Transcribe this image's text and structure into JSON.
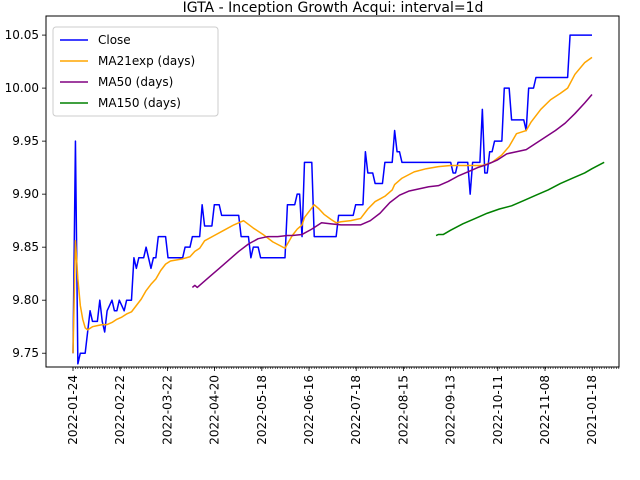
{
  "chart_data": {
    "type": "line",
    "title": "IGTA - Inception Growth Acqui: interval=1d",
    "xlabel": "",
    "ylabel": "",
    "ylim": [
      9.737,
      10.068
    ],
    "grid": false,
    "legend_position": "top-left",
    "x_tick_labels": [
      "2022-01-24",
      "2022-02-22",
      "2022-03-22",
      "2022-04-20",
      "2022-05-18",
      "2022-06-16",
      "2022-07-18",
      "2022-08-15",
      "2022-09-13",
      "2022-10-11",
      "2022-11-08",
      "2021-01-18"
    ],
    "y_tick_labels": [
      "9.75",
      "9.80",
      "9.85",
      "9.90",
      "9.95",
      "10.00",
      "10.05"
    ],
    "y_ticks": [
      9.75,
      9.8,
      9.85,
      9.9,
      9.95,
      10.0,
      10.05
    ],
    "n_points": 250,
    "series": [
      {
        "name": "Close",
        "color": "#0000ff",
        "points": [
          [
            0,
            9.75
          ],
          [
            1,
            9.95
          ],
          [
            2,
            9.74
          ],
          [
            3,
            9.75
          ],
          [
            5,
            9.75
          ],
          [
            6,
            9.77
          ],
          [
            7,
            9.79
          ],
          [
            8,
            9.78
          ],
          [
            10,
            9.78
          ],
          [
            11,
            9.8
          ],
          [
            12,
            9.78
          ],
          [
            13,
            9.77
          ],
          [
            14,
            9.79
          ],
          [
            16,
            9.8
          ],
          [
            17,
            9.79
          ],
          [
            18,
            9.79
          ],
          [
            19,
            9.8
          ],
          [
            21,
            9.79
          ],
          [
            22,
            9.8
          ],
          [
            24,
            9.8
          ],
          [
            25,
            9.84
          ],
          [
            26,
            9.83
          ],
          [
            27,
            9.84
          ],
          [
            29,
            9.84
          ],
          [
            30,
            9.85
          ],
          [
            31,
            9.84
          ],
          [
            32,
            9.83
          ],
          [
            33,
            9.84
          ],
          [
            34,
            9.84
          ],
          [
            35,
            9.86
          ],
          [
            37,
            9.86
          ],
          [
            38,
            9.86
          ],
          [
            39,
            9.84
          ],
          [
            40,
            9.84
          ],
          [
            45,
            9.84
          ],
          [
            46,
            9.85
          ],
          [
            48,
            9.85
          ],
          [
            49,
            9.86
          ],
          [
            51,
            9.86
          ],
          [
            52,
            9.86
          ],
          [
            53,
            9.89
          ],
          [
            54,
            9.87
          ],
          [
            57,
            9.87
          ],
          [
            58,
            9.89
          ],
          [
            60,
            9.89
          ],
          [
            61,
            9.88
          ],
          [
            64,
            9.88
          ],
          [
            68,
            9.88
          ],
          [
            69,
            9.86
          ],
          [
            72,
            9.86
          ],
          [
            73,
            9.84
          ],
          [
            74,
            9.85
          ],
          [
            76,
            9.85
          ],
          [
            77,
            9.84
          ],
          [
            82,
            9.84
          ],
          [
            87,
            9.84
          ],
          [
            88,
            9.89
          ],
          [
            90,
            9.89
          ],
          [
            91,
            9.89
          ],
          [
            92,
            9.9
          ],
          [
            93,
            9.9
          ],
          [
            94,
            9.86
          ],
          [
            95,
            9.93
          ],
          [
            98,
            9.93
          ],
          [
            99,
            9.86
          ],
          [
            101,
            9.86
          ],
          [
            108,
            9.86
          ],
          [
            109,
            9.88
          ],
          [
            115,
            9.88
          ],
          [
            116,
            9.89
          ],
          [
            119,
            9.89
          ],
          [
            120,
            9.94
          ],
          [
            121,
            9.92
          ],
          [
            123,
            9.92
          ],
          [
            124,
            9.91
          ],
          [
            127,
            9.91
          ],
          [
            128,
            9.93
          ],
          [
            130,
            9.93
          ],
          [
            131,
            9.93
          ],
          [
            132,
            9.96
          ],
          [
            133,
            9.94
          ],
          [
            134,
            9.94
          ],
          [
            135,
            9.93
          ],
          [
            150,
            9.93
          ],
          [
            155,
            9.93
          ],
          [
            156,
            9.92
          ],
          [
            157,
            9.92
          ],
          [
            158,
            9.93
          ],
          [
            162,
            9.93
          ],
          [
            163,
            9.9
          ],
          [
            164,
            9.93
          ],
          [
            166,
            9.93
          ],
          [
            167,
            9.93
          ],
          [
            168,
            9.98
          ],
          [
            169,
            9.92
          ],
          [
            170,
            9.92
          ],
          [
            171,
            9.94
          ],
          [
            172,
            9.94
          ],
          [
            173,
            9.95
          ],
          [
            176,
            9.95
          ],
          [
            177,
            10.0
          ],
          [
            179,
            10.0
          ],
          [
            180,
            9.97
          ],
          [
            185,
            9.97
          ],
          [
            186,
            9.96
          ],
          [
            187,
            10.0
          ],
          [
            189,
            10.0
          ],
          [
            190,
            10.01
          ],
          [
            203,
            10.01
          ],
          [
            204,
            10.05
          ],
          [
            213,
            10.05
          ]
        ]
      },
      {
        "name": "MA21exp (days)",
        "color": "#ffa500",
        "points": [
          [
            0,
            9.75
          ],
          [
            1,
            9.856
          ],
          [
            2,
            9.82
          ],
          [
            3,
            9.795
          ],
          [
            4,
            9.782
          ],
          [
            5,
            9.774
          ],
          [
            6,
            9.772
          ],
          [
            8,
            9.775
          ],
          [
            10,
            9.776
          ],
          [
            12,
            9.777
          ],
          [
            14,
            9.777
          ],
          [
            16,
            9.779
          ],
          [
            18,
            9.782
          ],
          [
            20,
            9.784
          ],
          [
            22,
            9.787
          ],
          [
            24,
            9.789
          ],
          [
            26,
            9.795
          ],
          [
            28,
            9.801
          ],
          [
            30,
            9.809
          ],
          [
            32,
            9.815
          ],
          [
            34,
            9.82
          ],
          [
            36,
            9.828
          ],
          [
            38,
            9.834
          ],
          [
            40,
            9.837
          ],
          [
            45,
            9.839
          ],
          [
            48,
            9.841
          ],
          [
            50,
            9.846
          ],
          [
            52,
            9.849
          ],
          [
            54,
            9.856
          ],
          [
            58,
            9.861
          ],
          [
            62,
            9.866
          ],
          [
            66,
            9.871
          ],
          [
            70,
            9.875
          ],
          [
            74,
            9.868
          ],
          [
            78,
            9.862
          ],
          [
            82,
            9.855
          ],
          [
            87,
            9.849
          ],
          [
            88,
            9.853
          ],
          [
            90,
            9.861
          ],
          [
            92,
            9.867
          ],
          [
            94,
            9.871
          ],
          [
            95,
            9.878
          ],
          [
            98,
            9.887
          ],
          [
            99,
            9.89
          ],
          [
            101,
            9.886
          ],
          [
            103,
            9.881
          ],
          [
            106,
            9.876
          ],
          [
            108,
            9.873
          ],
          [
            110,
            9.874
          ],
          [
            114,
            9.875
          ],
          [
            118,
            9.877
          ],
          [
            121,
            9.886
          ],
          [
            124,
            9.893
          ],
          [
            128,
            9.898
          ],
          [
            131,
            9.904
          ],
          [
            132,
            9.909
          ],
          [
            135,
            9.915
          ],
          [
            140,
            9.921
          ],
          [
            145,
            9.924
          ],
          [
            150,
            9.926
          ],
          [
            155,
            9.927
          ],
          [
            160,
            9.927
          ],
          [
            164,
            9.927
          ],
          [
            168,
            9.927
          ],
          [
            172,
            9.93
          ],
          [
            176,
            9.937
          ],
          [
            179,
            9.945
          ],
          [
            182,
            9.957
          ],
          [
            186,
            9.96
          ],
          [
            188,
            9.968
          ],
          [
            192,
            9.98
          ],
          [
            196,
            9.989
          ],
          [
            200,
            9.995
          ],
          [
            203,
            10.0
          ],
          [
            206,
            10.013
          ],
          [
            210,
            10.024
          ],
          [
            213,
            10.029
          ]
        ]
      },
      {
        "name": "MA50 (days)",
        "color": "#800080",
        "points": [
          [
            49,
            9.812
          ],
          [
            50,
            9.814
          ],
          [
            51,
            9.812
          ],
          [
            53,
            9.816
          ],
          [
            56,
            9.822
          ],
          [
            60,
            9.83
          ],
          [
            64,
            9.838
          ],
          [
            68,
            9.846
          ],
          [
            72,
            9.853
          ],
          [
            76,
            9.858
          ],
          [
            80,
            9.86
          ],
          [
            84,
            9.86
          ],
          [
            88,
            9.861
          ],
          [
            90,
            9.861
          ],
          [
            94,
            9.862
          ],
          [
            98,
            9.867
          ],
          [
            102,
            9.873
          ],
          [
            106,
            9.872
          ],
          [
            110,
            9.871
          ],
          [
            114,
            9.871
          ],
          [
            118,
            9.871
          ],
          [
            122,
            9.875
          ],
          [
            126,
            9.882
          ],
          [
            130,
            9.892
          ],
          [
            134,
            9.899
          ],
          [
            138,
            9.903
          ],
          [
            142,
            9.905
          ],
          [
            146,
            9.907
          ],
          [
            150,
            9.908
          ],
          [
            154,
            9.912
          ],
          [
            158,
            9.917
          ],
          [
            162,
            9.921
          ],
          [
            166,
            9.925
          ],
          [
            170,
            9.928
          ],
          [
            174,
            9.932
          ],
          [
            178,
            9.938
          ],
          [
            182,
            9.94
          ],
          [
            186,
            9.942
          ],
          [
            190,
            9.948
          ],
          [
            194,
            9.954
          ],
          [
            198,
            9.96
          ],
          [
            202,
            9.967
          ],
          [
            206,
            9.976
          ],
          [
            210,
            9.986
          ],
          [
            213,
            9.994
          ]
        ]
      },
      {
        "name": "MA150 (days)",
        "color": "#008000",
        "points": [
          [
            149,
            9.861
          ],
          [
            150,
            9.862
          ],
          [
            152,
            9.862
          ],
          [
            155,
            9.866
          ],
          [
            160,
            9.872
          ],
          [
            165,
            9.877
          ],
          [
            170,
            9.882
          ],
          [
            175,
            9.886
          ],
          [
            180,
            9.889
          ],
          [
            185,
            9.894
          ],
          [
            190,
            9.899
          ],
          [
            195,
            9.904
          ],
          [
            200,
            9.91
          ],
          [
            205,
            9.915
          ],
          [
            210,
            9.92
          ],
          [
            213,
            9.924
          ],
          [
            218,
            9.93
          ]
        ]
      }
    ]
  }
}
